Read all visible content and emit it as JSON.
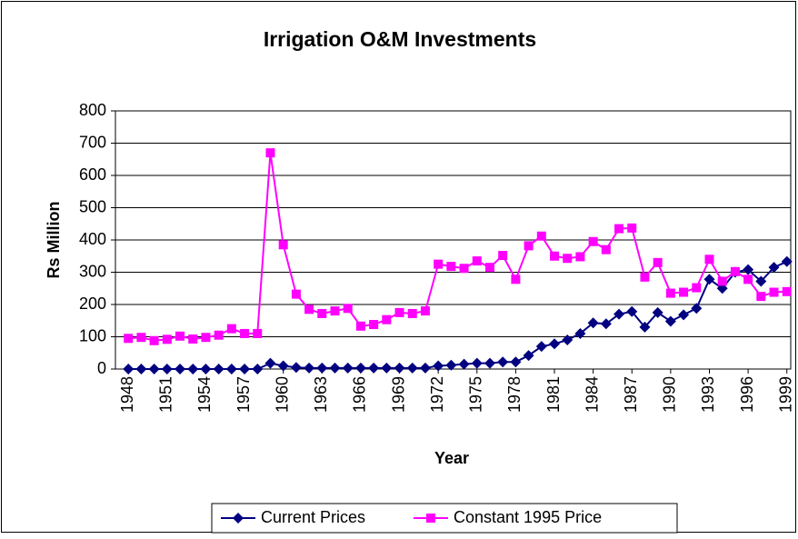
{
  "chart_data": {
    "type": "line",
    "title": "Irrigation O&M Investments",
    "x_label": "Year",
    "y_label": "Rs Million",
    "x": [
      1948,
      1949,
      1950,
      1951,
      1952,
      1953,
      1954,
      1955,
      1956,
      1957,
      1958,
      1959,
      1960,
      1961,
      1962,
      1963,
      1964,
      1965,
      1966,
      1967,
      1968,
      1969,
      1970,
      1971,
      1972,
      1973,
      1974,
      1975,
      1976,
      1977,
      1978,
      1979,
      1980,
      1981,
      1982,
      1983,
      1984,
      1985,
      1986,
      1987,
      1988,
      1989,
      1990,
      1991,
      1992,
      1993,
      1994,
      1995,
      1996,
      1997,
      1998,
      1999
    ],
    "series": [
      {
        "name": "Current Prices",
        "color": "#000080",
        "marker": "diamond",
        "values": [
          0,
          0,
          0,
          0,
          0,
          0,
          0,
          0,
          0,
          0,
          0,
          18,
          10,
          5,
          3,
          3,
          3,
          3,
          3,
          3,
          3,
          3,
          3,
          3,
          10,
          12,
          15,
          18,
          18,
          22,
          22,
          42,
          70,
          78,
          90,
          110,
          143,
          140,
          170,
          178,
          130,
          175,
          148,
          168,
          188,
          278,
          250,
          300,
          308,
          272,
          315,
          333
        ]
      },
      {
        "name": "Constant 1995 Price",
        "color": "#FF00FF",
        "marker": "square",
        "values": [
          95,
          98,
          88,
          92,
          102,
          93,
          98,
          105,
          125,
          110,
          110,
          670,
          385,
          232,
          185,
          172,
          180,
          188,
          133,
          138,
          153,
          175,
          172,
          180,
          325,
          318,
          312,
          335,
          315,
          352,
          278,
          382,
          412,
          350,
          343,
          348,
          395,
          370,
          435,
          437,
          285,
          330,
          235,
          238,
          252,
          340,
          272,
          302,
          278,
          225,
          238,
          240
        ]
      }
    ],
    "xlim": [
      1947,
      1999.3
    ],
    "xticks": [
      1948,
      1951,
      1954,
      1957,
      1960,
      1963,
      1966,
      1969,
      1972,
      1975,
      1978,
      1981,
      1984,
      1987,
      1990,
      1993,
      1996,
      1999
    ],
    "ylim": [
      0,
      800
    ],
    "yticks": [
      0,
      100,
      200,
      300,
      400,
      500,
      600,
      700,
      800
    ],
    "grid": true,
    "legend": "bottom"
  }
}
